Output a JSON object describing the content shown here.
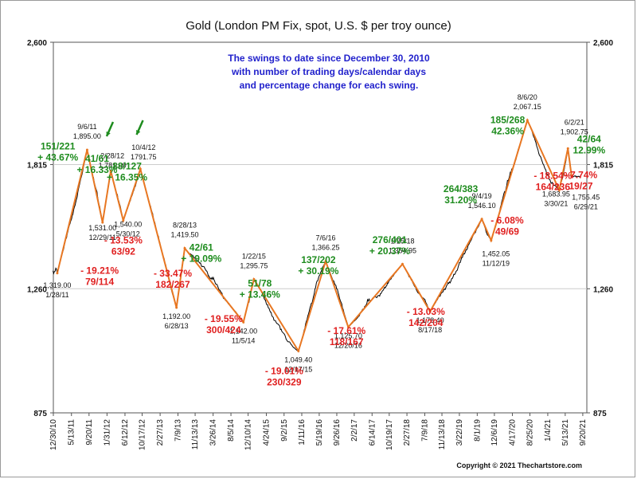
{
  "chart_data": {
    "type": "line",
    "title": "Gold (London PM Fix, spot, U.S. $ per troy ounce)",
    "ylim": [
      875,
      2600
    ],
    "y_ticks": [
      {
        "value": 2600,
        "label": "2,600"
      },
      {
        "value": 1815,
        "label": "1,815"
      },
      {
        "value": 1260,
        "label": "1,260"
      },
      {
        "value": 875,
        "label": "875"
      }
    ],
    "y_scale": "log",
    "x_start": "2010-12-30",
    "x_end": "2021-10-20",
    "x_ticks": [
      "12/30/10",
      "5/13/11",
      "9/20/11",
      "1/31/12",
      "6/12/12",
      "10/17/12",
      "2/27/13",
      "7/9/13",
      "11/13/13",
      "3/26/14",
      "8/5/14",
      "12/10/14",
      "4/24/15",
      "9/2/15",
      "1/11/16",
      "5/19/16",
      "9/26/16",
      "2/2/17",
      "6/14/17",
      "10/19/17",
      "2/27/18",
      "7/9/18",
      "11/13/18",
      "3/22/19",
      "8/1/19",
      "12/6/19",
      "4/17/20",
      "8/25/20",
      "1/4/21",
      "5/13/21",
      "9/20/21"
    ],
    "turning_points": [
      {
        "date": "2011-01-28",
        "value": 1319.0,
        "labels": [
          "1,319.00",
          "1/28/11"
        ]
      },
      {
        "date": "2011-09-06",
        "value": 1895.0,
        "labels": [
          "9/6/11",
          "1,895.00"
        ]
      },
      {
        "date": "2011-12-29",
        "value": 1531.0,
        "labels": [
          "1,531.00",
          "12/29/11"
        ]
      },
      {
        "date": "2012-02-28",
        "value": 1781.0,
        "labels": [
          "2/28/12",
          "1,781.00"
        ]
      },
      {
        "date": "2012-05-30",
        "value": 1540.0,
        "labels": [
          "1,540.00",
          "5/30/12"
        ]
      },
      {
        "date": "2012-10-04",
        "value": 1791.75,
        "labels": [
          "10/4/12",
          "1791.75"
        ]
      },
      {
        "date": "2013-06-28",
        "value": 1192.0,
        "labels": [
          "1,192.00",
          "6/28/13"
        ]
      },
      {
        "date": "2013-08-28",
        "value": 1419.5,
        "labels": [
          "8/28/13",
          "1,419.50"
        ]
      },
      {
        "date": "2014-11-05",
        "value": 1142.0,
        "labels": [
          "1,142.00",
          "11/5/14"
        ]
      },
      {
        "date": "2015-01-22",
        "value": 1295.75,
        "labels": [
          "1/22/15",
          "1,295.75"
        ]
      },
      {
        "date": "2015-12-17",
        "value": 1049.4,
        "labels": [
          "1,049.40",
          "12/17/15"
        ]
      },
      {
        "date": "2016-07-06",
        "value": 1366.25,
        "labels": [
          "7/6/16",
          "1,366.25"
        ]
      },
      {
        "date": "2016-12-20",
        "value": 1125.7,
        "labels": [
          "1,125.70",
          "12/20/16"
        ]
      },
      {
        "date": "2018-01-25",
        "value": 1354.95,
        "labels": [
          "1/25/18",
          "1,354.95"
        ]
      },
      {
        "date": "2018-08-17",
        "value": 1178.4,
        "labels": [
          "1,178.40",
          "8/17/18"
        ]
      },
      {
        "date": "2019-09-04",
        "value": 1546.1,
        "labels": [
          "9/4/19",
          "1,546.10"
        ]
      },
      {
        "date": "2019-11-12",
        "value": 1452.05,
        "labels": [
          "1,452.05",
          "11/12/19"
        ]
      },
      {
        "date": "2020-08-06",
        "value": 2067.15,
        "labels": [
          "8/6/20",
          "2,067.15"
        ]
      },
      {
        "date": "2021-03-30",
        "value": 1683.95,
        "labels": [
          "1,683.95",
          "3/30/21"
        ]
      },
      {
        "date": "2021-06-02",
        "value": 1902.75,
        "labels": [
          "6/2/21",
          "1,902.75"
        ]
      },
      {
        "date": "2021-06-29",
        "value": 1755.45,
        "labels": [
          "1,755.45",
          "6/29/21"
        ]
      }
    ],
    "swing_annotations": [
      {
        "color": "green",
        "lines": [
          "151/221",
          "+ 43.67%"
        ]
      },
      {
        "color": "red",
        "lines": [
          "- 19.21%",
          "79/114"
        ]
      },
      {
        "color": "green",
        "lines": [
          "41/61",
          "+ 16.33%"
        ]
      },
      {
        "color": "red",
        "lines": [
          "- 13.53%",
          "63/92"
        ]
      },
      {
        "color": "green",
        "lines": [
          "88/127",
          "+ 16.35%"
        ]
      },
      {
        "color": "red",
        "lines": [
          "- 33.47%",
          "182/267"
        ]
      },
      {
        "color": "green",
        "lines": [
          "42/61",
          "+ 19.09%"
        ]
      },
      {
        "color": "red",
        "lines": [
          "- 19.55%",
          "300/424"
        ]
      },
      {
        "color": "green",
        "lines": [
          "51/78",
          "+ 13.46%"
        ]
      },
      {
        "color": "red",
        "lines": [
          "- 19.01%",
          "230/329"
        ]
      },
      {
        "color": "green",
        "lines": [
          "137/202",
          "+ 30.19%"
        ]
      },
      {
        "color": "red",
        "lines": [
          "- 17.61%",
          "118/167"
        ]
      },
      {
        "color": "green",
        "lines": [
          "276/401",
          "+ 20.37%"
        ]
      },
      {
        "color": "red",
        "lines": [
          "- 13.03%",
          "142/204"
        ]
      },
      {
        "color": "green",
        "lines": [
          "264/383",
          "31.20%"
        ]
      },
      {
        "color": "red",
        "lines": [
          "- 6.08%",
          "49/69"
        ]
      },
      {
        "color": "green",
        "lines": [
          "185/268",
          "42.36%"
        ]
      },
      {
        "color": "red",
        "lines": [
          "- 18.54%",
          "164/236"
        ]
      },
      {
        "color": "green",
        "lines": [
          "42/64",
          "12.99%"
        ]
      },
      {
        "color": "red",
        "lines": [
          "- 7.74%",
          "19/27"
        ]
      }
    ],
    "note": [
      "The swings to date since December 30, 2010",
      "with number of trading days/calendar days",
      "and percentage change for each swing."
    ],
    "copyright": "Copyright © 2021 Thechartstore.com",
    "colors": {
      "price": "#000000",
      "swing": "#e87722",
      "up": "#1e8c1e",
      "down": "#e02020",
      "note": "#2222cc",
      "grid": "#cccccc"
    }
  }
}
